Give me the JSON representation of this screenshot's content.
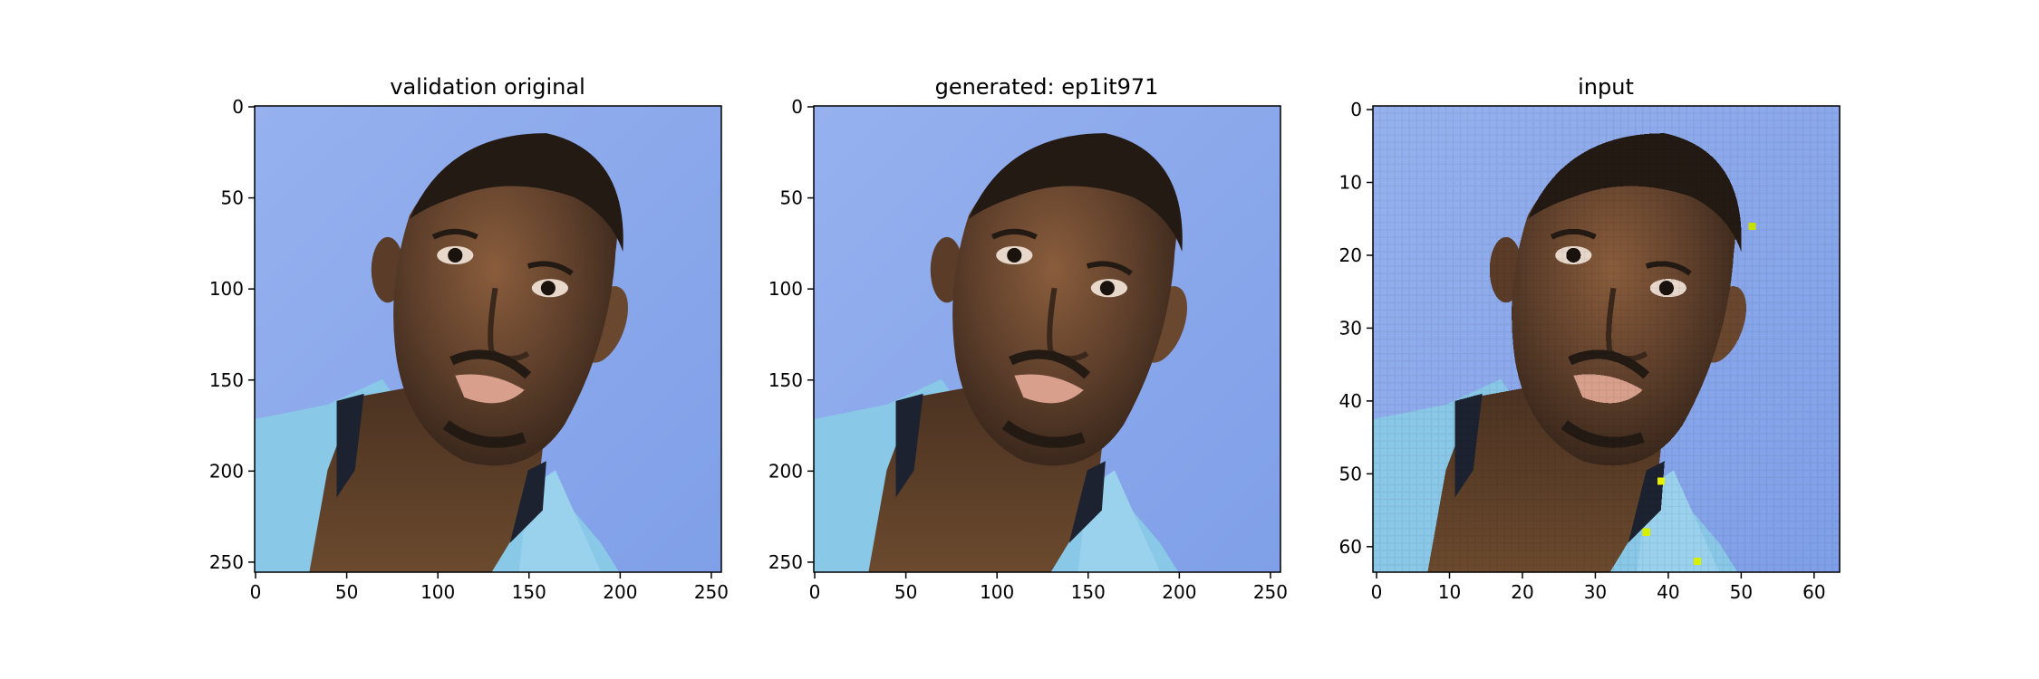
{
  "chart_data": [
    {
      "type": "image",
      "title": "validation original",
      "xlim": [
        0,
        255
      ],
      "ylim": [
        255,
        0
      ],
      "x_ticks": [
        0,
        50,
        100,
        150,
        200,
        250
      ],
      "y_ticks": [
        0,
        50,
        100,
        150,
        200,
        250
      ],
      "image_description": "mugshot-style photo of a man's head tilted against a blue background"
    },
    {
      "type": "image",
      "title": "generated: ep1it971",
      "xlim": [
        0,
        255
      ],
      "ylim": [
        255,
        0
      ],
      "x_ticks": [
        0,
        50,
        100,
        150,
        200,
        250
      ],
      "y_ticks": [
        0,
        50,
        100,
        150,
        200,
        250
      ],
      "image_description": "reconstructed version of the same photo"
    },
    {
      "type": "image",
      "title": "input",
      "xlim": [
        0,
        63
      ],
      "ylim": [
        63,
        0
      ],
      "x_ticks": [
        0,
        10,
        20,
        30,
        40,
        50,
        60
      ],
      "y_ticks": [
        0,
        10,
        20,
        30,
        40,
        50,
        60
      ],
      "image_description": "low-resolution pixelated version of the photo"
    }
  ],
  "colors": {
    "background": "#8aa8ec",
    "skin": "#5e3f2b",
    "hair": "#241a14",
    "shirt": "#8ac8e8"
  }
}
